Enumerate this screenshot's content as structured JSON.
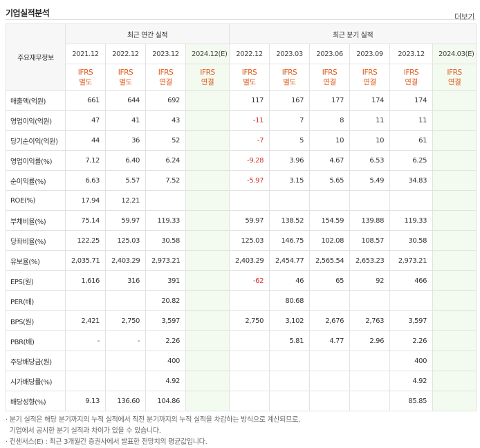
{
  "header": {
    "title": "기업실적분석",
    "more_label": "더보기"
  },
  "table": {
    "corner_label": "주요재무정보",
    "group_annual": "최근 연간 실적",
    "group_quarter": "최근 분기 실적",
    "annual_periods": [
      {
        "period": "2021.12",
        "ifrs": "IFRS",
        "basis": "별도",
        "est": false
      },
      {
        "period": "2022.12",
        "ifrs": "IFRS",
        "basis": "별도",
        "est": false
      },
      {
        "period": "2023.12",
        "ifrs": "IFRS",
        "basis": "연결",
        "est": false
      },
      {
        "period": "2024.12(E)",
        "ifrs": "IFRS",
        "basis": "연결",
        "est": true
      }
    ],
    "quarter_periods": [
      {
        "period": "2022.12",
        "ifrs": "IFRS",
        "basis": "별도",
        "est": false
      },
      {
        "period": "2023.03",
        "ifrs": "IFRS",
        "basis": "별도",
        "est": false
      },
      {
        "period": "2023.06",
        "ifrs": "IFRS",
        "basis": "연결",
        "est": false
      },
      {
        "period": "2023.09",
        "ifrs": "IFRS",
        "basis": "연결",
        "est": false
      },
      {
        "period": "2023.12",
        "ifrs": "IFRS",
        "basis": "연결",
        "est": false
      },
      {
        "period": "2024.03(E)",
        "ifrs": "IFRS",
        "basis": "연결",
        "est": true
      }
    ],
    "rows": [
      {
        "label": "매출액(억원)",
        "annual": [
          "661",
          "644",
          "692",
          ""
        ],
        "quarter": [
          "117",
          "167",
          "177",
          "174",
          "174",
          ""
        ]
      },
      {
        "label": "영업이익(억원)",
        "annual": [
          "47",
          "41",
          "43",
          ""
        ],
        "quarter": [
          "-11",
          "7",
          "8",
          "11",
          "11",
          ""
        ]
      },
      {
        "label": "당기순이익(억원)",
        "annual": [
          "44",
          "36",
          "52",
          ""
        ],
        "quarter": [
          "-7",
          "5",
          "10",
          "10",
          "61",
          ""
        ]
      },
      {
        "label": "영업이익률(%)",
        "annual": [
          "7.12",
          "6.40",
          "6.24",
          ""
        ],
        "quarter": [
          "-9.28",
          "3.96",
          "4.67",
          "6.53",
          "6.25",
          ""
        ]
      },
      {
        "label": "순이익률(%)",
        "annual": [
          "6.63",
          "5.57",
          "7.52",
          ""
        ],
        "quarter": [
          "-5.97",
          "3.15",
          "5.65",
          "5.49",
          "34.83",
          ""
        ]
      },
      {
        "label": "ROE(%)",
        "annual": [
          "17.94",
          "12.21",
          "",
          ""
        ],
        "quarter": [
          "",
          "",
          "",
          "",
          "",
          ""
        ]
      },
      {
        "label": "부채비율(%)",
        "annual": [
          "75.14",
          "59.97",
          "119.33",
          ""
        ],
        "quarter": [
          "59.97",
          "138.52",
          "154.59",
          "139.88",
          "119.33",
          ""
        ]
      },
      {
        "label": "당좌비율(%)",
        "annual": [
          "122.25",
          "125.03",
          "30.58",
          ""
        ],
        "quarter": [
          "125.03",
          "146.75",
          "102.08",
          "108.57",
          "30.58",
          ""
        ]
      },
      {
        "label": "유보율(%)",
        "annual": [
          "2,035.71",
          "2,403.29",
          "2,973.21",
          ""
        ],
        "quarter": [
          "2,403.29",
          "2,454.77",
          "2,565.54",
          "2,653.23",
          "2,973.21",
          ""
        ]
      },
      {
        "label": "EPS(원)",
        "annual": [
          "1,616",
          "316",
          "391",
          ""
        ],
        "quarter": [
          "-62",
          "46",
          "65",
          "92",
          "466",
          ""
        ]
      },
      {
        "label": "PER(배)",
        "annual": [
          "",
          "",
          "20.82",
          ""
        ],
        "quarter": [
          "",
          "80.68",
          "",
          "",
          "",
          ""
        ]
      },
      {
        "label": "BPS(원)",
        "annual": [
          "2,421",
          "2,750",
          "3,597",
          ""
        ],
        "quarter": [
          "2,750",
          "3,102",
          "2,676",
          "2,763",
          "3,597",
          ""
        ]
      },
      {
        "label": "PBR(배)",
        "annual": [
          "-",
          "-",
          "2.26",
          ""
        ],
        "quarter": [
          "",
          "5.81",
          "4.77",
          "2.96",
          "2.26",
          ""
        ]
      },
      {
        "label": "주당배당금(원)",
        "annual": [
          "",
          "",
          "400",
          ""
        ],
        "quarter": [
          "",
          "",
          "",
          "",
          "400",
          ""
        ]
      },
      {
        "label": "시가배당률(%)",
        "annual": [
          "",
          "",
          "4.92",
          ""
        ],
        "quarter": [
          "",
          "",
          "",
          "",
          "4.92",
          ""
        ]
      },
      {
        "label": "배당성향(%)",
        "annual": [
          "9.13",
          "136.60",
          "104.86",
          ""
        ],
        "quarter": [
          "",
          "",
          "",
          "",
          "85.85",
          ""
        ]
      }
    ]
  },
  "notes": [
    "분기 실적은 해당 분기까지의 누적 실적에서 직전 분기까지의 누적 실적을 차감하는 방식으로 계산되므로,",
    "기업에서 공시한 분기 실적과 차이가 있을 수 있습니다.",
    "컨센서스(E) : 최근 3개월간 증권사에서 발표한 전망치의 평균값입니다."
  ],
  "colors": {
    "ifrs": "#e05a1c",
    "negative": "#d62d2d",
    "estimate_bg": "#f3faef"
  }
}
